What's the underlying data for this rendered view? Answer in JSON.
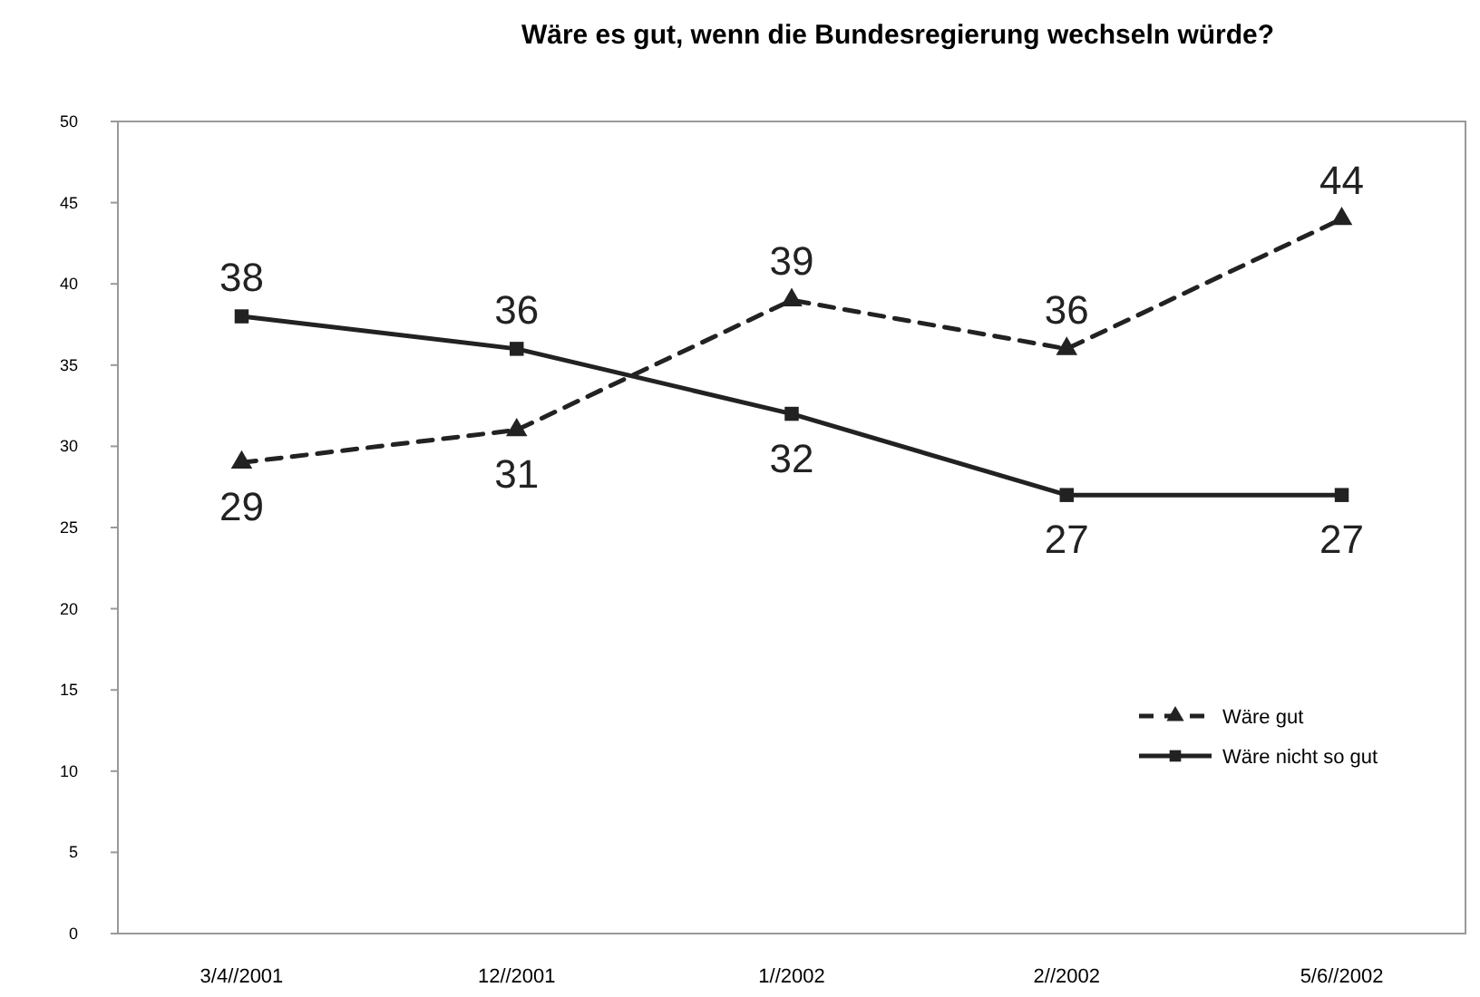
{
  "chart_data": {
    "type": "line",
    "title": "Wäre es gut, wenn die Bundesregierung wechseln würde?",
    "categories": [
      "3/4//2001",
      "12//2001",
      "1//2002",
      "2//2002",
      "5/6//2002"
    ],
    "series": [
      {
        "name": "Wäre gut",
        "color": "#222222",
        "values": [
          29,
          31,
          39,
          36,
          44
        ],
        "marker": "triangle",
        "line_style": "dashed"
      },
      {
        "name": "Wäre nicht so gut",
        "color": "#222222",
        "values": [
          38,
          36,
          32,
          27,
          27
        ],
        "marker": "square",
        "line_style": "solid"
      }
    ],
    "ylim": [
      0,
      50
    ],
    "yticks": [
      0,
      5,
      10,
      15,
      20,
      25,
      30,
      35,
      40,
      45,
      50
    ],
    "data_labels": true,
    "legend": "bottom right",
    "grid": false
  }
}
